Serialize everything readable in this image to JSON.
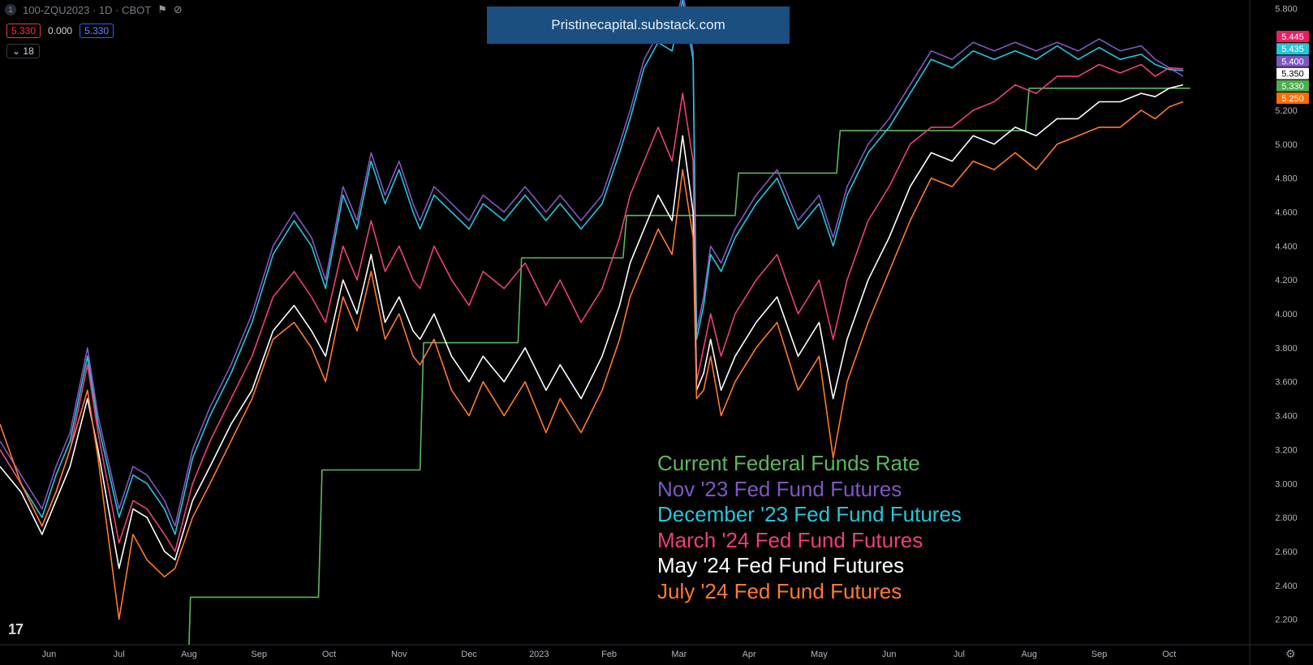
{
  "header": {
    "symbol": "100-ZQU2023 · 1D · CBOT",
    "logo_glyph": "1"
  },
  "values_row": {
    "box_left": "5.330",
    "middle": "0.000",
    "box_right": "5.330"
  },
  "counter_label": "18",
  "banner": "Pristinecapital.substack.com",
  "chart_data": {
    "type": "line",
    "y_axis": {
      "ticks": [
        "5.800",
        "5.200",
        "5.000",
        "4.800",
        "4.600",
        "4.400",
        "4.200",
        "4.000",
        "3.800",
        "3.600",
        "3.400",
        "3.200",
        "3.000",
        "2.800",
        "2.600",
        "2.400",
        "2.200"
      ],
      "range": [
        2.05,
        5.85
      ]
    },
    "x_axis": {
      "ticks": [
        {
          "label": "Jun",
          "t": 0.7
        },
        {
          "label": "Jul",
          "t": 1.7
        },
        {
          "label": "Aug",
          "t": 2.7
        },
        {
          "label": "Sep",
          "t": 3.7
        },
        {
          "label": "Oct",
          "t": 4.7
        },
        {
          "label": "Nov",
          "t": 5.7
        },
        {
          "label": "Dec",
          "t": 6.7
        },
        {
          "label": "2023",
          "t": 7.7
        },
        {
          "label": "Feb",
          "t": 8.7
        },
        {
          "label": "Mar",
          "t": 9.7
        },
        {
          "label": "Apr",
          "t": 10.7
        },
        {
          "label": "May",
          "t": 11.7
        },
        {
          "label": "Jun",
          "t": 12.7
        },
        {
          "label": "Jul",
          "t": 13.7
        },
        {
          "label": "Aug",
          "t": 14.7
        },
        {
          "label": "Sep",
          "t": 15.7
        },
        {
          "label": "Oct",
          "t": 16.7
        }
      ],
      "range": [
        0,
        17.85
      ]
    },
    "series": [
      {
        "name": "Current Federal Funds Rate",
        "color": "#5cb85c",
        "step": true,
        "x": [
          2.7,
          2.72,
          4.55,
          4.6,
          6.0,
          6.05,
          7.4,
          7.45,
          8.9,
          8.95,
          10.5,
          10.55,
          11.95,
          12.0,
          14.65,
          14.7,
          17.0
        ],
        "y": [
          2.05,
          2.33,
          2.33,
          3.08,
          3.08,
          3.83,
          3.83,
          4.33,
          4.33,
          4.58,
          4.58,
          4.83,
          4.83,
          5.08,
          5.08,
          5.33,
          5.33
        ]
      },
      {
        "name": "Nov '23 Fed Fund Futures",
        "color": "#7e57c2",
        "x": [
          0.0,
          0.3,
          0.6,
          0.8,
          1.0,
          1.25,
          1.4,
          1.7,
          1.9,
          2.1,
          2.35,
          2.5,
          2.75,
          3.0,
          3.3,
          3.6,
          3.9,
          4.2,
          4.45,
          4.65,
          4.9,
          5.1,
          5.3,
          5.5,
          5.7,
          5.9,
          6.0,
          6.2,
          6.45,
          6.7,
          6.9,
          7.2,
          7.5,
          7.8,
          8.0,
          8.3,
          8.6,
          8.85,
          9.0,
          9.2,
          9.4,
          9.6,
          9.75,
          9.9,
          9.95,
          10.05,
          10.15,
          10.3,
          10.5,
          10.8,
          11.1,
          11.4,
          11.7,
          11.9,
          12.1,
          12.4,
          12.7,
          13.0,
          13.3,
          13.6,
          13.9,
          14.2,
          14.5,
          14.8,
          15.1,
          15.4,
          15.7,
          16.0,
          16.3,
          16.5,
          16.7,
          16.9
        ],
        "y": [
          3.25,
          3.05,
          2.85,
          3.1,
          3.3,
          3.8,
          3.4,
          2.85,
          3.1,
          3.05,
          2.9,
          2.75,
          3.2,
          3.45,
          3.7,
          4.0,
          4.4,
          4.6,
          4.45,
          4.2,
          4.75,
          4.55,
          4.95,
          4.7,
          4.9,
          4.65,
          4.55,
          4.75,
          4.65,
          4.55,
          4.7,
          4.6,
          4.75,
          4.6,
          4.7,
          4.55,
          4.7,
          5.0,
          5.2,
          5.5,
          5.65,
          5.6,
          5.9,
          5.55,
          3.9,
          4.1,
          4.4,
          4.3,
          4.5,
          4.7,
          4.85,
          4.55,
          4.7,
          4.45,
          4.75,
          5.0,
          5.15,
          5.35,
          5.55,
          5.5,
          5.6,
          5.55,
          5.6,
          5.55,
          5.6,
          5.55,
          5.62,
          5.55,
          5.58,
          5.5,
          5.45,
          5.4
        ]
      },
      {
        "name": "December '23 Fed Fund Futures",
        "color": "#26c6da",
        "x": [
          0.0,
          0.3,
          0.6,
          0.8,
          1.0,
          1.25,
          1.4,
          1.7,
          1.9,
          2.1,
          2.35,
          2.5,
          2.75,
          3.0,
          3.3,
          3.6,
          3.9,
          4.2,
          4.45,
          4.65,
          4.9,
          5.1,
          5.3,
          5.5,
          5.7,
          5.9,
          6.0,
          6.2,
          6.45,
          6.7,
          6.9,
          7.2,
          7.5,
          7.8,
          8.0,
          8.3,
          8.6,
          8.85,
          9.0,
          9.2,
          9.4,
          9.6,
          9.75,
          9.9,
          9.95,
          10.05,
          10.15,
          10.3,
          10.5,
          10.8,
          11.1,
          11.4,
          11.7,
          11.9,
          12.1,
          12.4,
          12.7,
          13.0,
          13.3,
          13.6,
          13.9,
          14.2,
          14.5,
          14.8,
          15.1,
          15.4,
          15.7,
          16.0,
          16.3,
          16.5,
          16.7,
          16.9
        ],
        "y": [
          3.2,
          3.0,
          2.8,
          3.05,
          3.25,
          3.75,
          3.35,
          2.8,
          3.05,
          3.0,
          2.85,
          2.7,
          3.15,
          3.4,
          3.65,
          3.95,
          4.35,
          4.55,
          4.4,
          4.15,
          4.7,
          4.5,
          4.9,
          4.65,
          4.85,
          4.6,
          4.5,
          4.7,
          4.6,
          4.5,
          4.65,
          4.55,
          4.7,
          4.55,
          4.65,
          4.5,
          4.65,
          4.95,
          5.15,
          5.45,
          5.6,
          5.55,
          5.85,
          5.5,
          3.85,
          4.05,
          4.35,
          4.25,
          4.45,
          4.65,
          4.8,
          4.5,
          4.65,
          4.4,
          4.7,
          4.95,
          5.1,
          5.3,
          5.5,
          5.45,
          5.55,
          5.5,
          5.55,
          5.5,
          5.58,
          5.5,
          5.57,
          5.5,
          5.53,
          5.47,
          5.44,
          5.435
        ]
      },
      {
        "name": "March '24 Fed Fund Futures",
        "color": "#ec407a",
        "x": [
          0.0,
          0.3,
          0.6,
          0.8,
          1.0,
          1.25,
          1.4,
          1.7,
          1.9,
          2.1,
          2.35,
          2.5,
          2.75,
          3.0,
          3.3,
          3.6,
          3.9,
          4.2,
          4.45,
          4.65,
          4.9,
          5.1,
          5.3,
          5.5,
          5.7,
          5.9,
          6.0,
          6.2,
          6.45,
          6.7,
          6.9,
          7.2,
          7.5,
          7.8,
          8.0,
          8.3,
          8.6,
          8.85,
          9.0,
          9.2,
          9.4,
          9.6,
          9.75,
          9.9,
          9.95,
          10.05,
          10.15,
          10.3,
          10.5,
          10.8,
          11.1,
          11.4,
          11.7,
          11.9,
          12.1,
          12.4,
          12.7,
          13.0,
          13.3,
          13.6,
          13.9,
          14.2,
          14.5,
          14.8,
          15.1,
          15.4,
          15.7,
          16.0,
          16.3,
          16.5,
          16.7,
          16.9
        ],
        "y": [
          3.2,
          3.0,
          2.75,
          2.95,
          3.2,
          3.7,
          3.3,
          2.65,
          2.9,
          2.85,
          2.7,
          2.6,
          3.0,
          3.25,
          3.5,
          3.75,
          4.1,
          4.25,
          4.1,
          3.95,
          4.4,
          4.2,
          4.55,
          4.25,
          4.4,
          4.2,
          4.15,
          4.4,
          4.2,
          4.05,
          4.25,
          4.15,
          4.3,
          4.05,
          4.2,
          3.95,
          4.15,
          4.45,
          4.7,
          4.9,
          5.1,
          4.9,
          5.3,
          4.9,
          3.6,
          3.8,
          4.0,
          3.75,
          4.0,
          4.2,
          4.35,
          4.0,
          4.2,
          3.85,
          4.2,
          4.55,
          4.75,
          5.0,
          5.1,
          5.1,
          5.2,
          5.25,
          5.35,
          5.3,
          5.4,
          5.4,
          5.47,
          5.42,
          5.47,
          5.4,
          5.45,
          5.445
        ]
      },
      {
        "name": "May '24 Fed Fund Futures",
        "color": "#ffffff",
        "x": [
          0.0,
          0.3,
          0.6,
          0.8,
          1.0,
          1.25,
          1.4,
          1.7,
          1.9,
          2.1,
          2.35,
          2.5,
          2.75,
          3.0,
          3.3,
          3.6,
          3.9,
          4.2,
          4.45,
          4.65,
          4.9,
          5.1,
          5.3,
          5.5,
          5.7,
          5.9,
          6.0,
          6.2,
          6.45,
          6.7,
          6.9,
          7.2,
          7.5,
          7.8,
          8.0,
          8.3,
          8.6,
          8.85,
          9.0,
          9.2,
          9.4,
          9.6,
          9.75,
          9.9,
          9.95,
          10.05,
          10.15,
          10.3,
          10.5,
          10.8,
          11.1,
          11.4,
          11.7,
          11.9,
          12.1,
          12.4,
          12.7,
          13.0,
          13.3,
          13.6,
          13.9,
          14.2,
          14.5,
          14.8,
          15.1,
          15.4,
          15.7,
          16.0,
          16.3,
          16.5,
          16.7,
          16.9
        ],
        "y": [
          3.1,
          2.95,
          2.7,
          2.9,
          3.1,
          3.5,
          3.2,
          2.5,
          2.85,
          2.8,
          2.6,
          2.55,
          2.9,
          3.1,
          3.35,
          3.55,
          3.9,
          4.05,
          3.9,
          3.75,
          4.2,
          4.0,
          4.35,
          3.95,
          4.1,
          3.9,
          3.85,
          4.0,
          3.75,
          3.6,
          3.75,
          3.6,
          3.8,
          3.55,
          3.7,
          3.5,
          3.75,
          4.05,
          4.3,
          4.5,
          4.7,
          4.55,
          5.05,
          4.6,
          3.55,
          3.65,
          3.85,
          3.55,
          3.75,
          3.95,
          4.1,
          3.75,
          3.95,
          3.5,
          3.85,
          4.2,
          4.45,
          4.75,
          4.95,
          4.9,
          5.05,
          5.0,
          5.1,
          5.05,
          5.15,
          5.15,
          5.25,
          5.25,
          5.3,
          5.28,
          5.33,
          5.35
        ]
      },
      {
        "name": "July '24 Fed Fund Futures",
        "color": "#ff7a2f",
        "x": [
          0.0,
          0.3,
          0.6,
          0.8,
          1.0,
          1.25,
          1.4,
          1.7,
          1.9,
          2.1,
          2.35,
          2.5,
          2.75,
          3.0,
          3.3,
          3.6,
          3.9,
          4.2,
          4.45,
          4.65,
          4.9,
          5.1,
          5.3,
          5.5,
          5.7,
          5.9,
          6.0,
          6.2,
          6.45,
          6.7,
          6.9,
          7.2,
          7.5,
          7.8,
          8.0,
          8.3,
          8.6,
          8.85,
          9.0,
          9.2,
          9.4,
          9.6,
          9.75,
          9.9,
          9.95,
          10.05,
          10.15,
          10.3,
          10.5,
          10.8,
          11.1,
          11.4,
          11.7,
          11.9,
          12.1,
          12.4,
          12.7,
          13.0,
          13.3,
          13.6,
          13.9,
          14.2,
          14.5,
          14.8,
          15.1,
          15.4,
          15.7,
          16.0,
          16.3,
          16.5,
          16.7,
          16.9
        ],
        "y": [
          3.35,
          3.0,
          2.75,
          2.95,
          3.2,
          3.55,
          3.15,
          2.2,
          2.7,
          2.55,
          2.45,
          2.5,
          2.8,
          3.0,
          3.25,
          3.5,
          3.85,
          3.95,
          3.8,
          3.6,
          4.1,
          3.9,
          4.25,
          3.85,
          4.0,
          3.75,
          3.7,
          3.85,
          3.55,
          3.4,
          3.6,
          3.4,
          3.6,
          3.3,
          3.5,
          3.3,
          3.55,
          3.85,
          4.1,
          4.3,
          4.5,
          4.35,
          4.85,
          4.45,
          3.5,
          3.55,
          3.75,
          3.4,
          3.6,
          3.8,
          3.95,
          3.55,
          3.75,
          3.15,
          3.6,
          3.95,
          4.25,
          4.55,
          4.8,
          4.75,
          4.9,
          4.85,
          4.95,
          4.85,
          5.0,
          5.05,
          5.1,
          5.1,
          5.2,
          5.15,
          5.22,
          5.25
        ]
      }
    ],
    "right_badges": [
      {
        "label": "5.445",
        "value": 5.445,
        "bg": "#e91e63",
        "fg": "#ffffff"
      },
      {
        "label": "5.435",
        "value": 5.435,
        "bg": "#26c6da",
        "fg": "#ffffff"
      },
      {
        "label": "5.400",
        "value": 5.4,
        "bg": "#7e57c2",
        "fg": "#ffffff"
      },
      {
        "label": "5.350",
        "value": 5.35,
        "bg": "#ffffff",
        "fg": "#000000"
      },
      {
        "label": "5.330",
        "value": 5.33,
        "bg": "#4caf50",
        "fg": "#ffffff"
      },
      {
        "label": "5.250",
        "value": 5.25,
        "bg": "#ff6d00",
        "fg": "#ffffff"
      }
    ]
  },
  "legend": [
    {
      "label": "Current Federal Funds Rate",
      "color": "#5cb85c"
    },
    {
      "label": "Nov '23 Fed Fund Futures",
      "color": "#7e57c2"
    },
    {
      "label": "December '23 Fed Fund Futures",
      "color": "#26c6da"
    },
    {
      "label": "March '24 Fed Fund Futures",
      "color": "#ec407a"
    },
    {
      "label": "May '24 Fed Fund Futures",
      "color": "#ffffff"
    },
    {
      "label": "July '24 Fed Fund Futures",
      "color": "#ff7a2f"
    }
  ],
  "tv_logo": "17"
}
